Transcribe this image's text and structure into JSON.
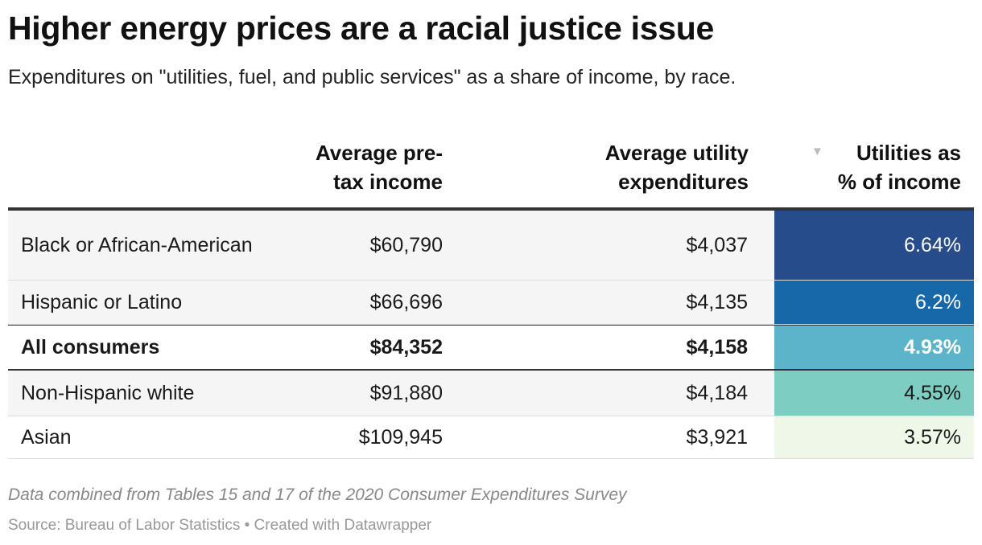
{
  "title": "Higher energy prices are a racial justice issue",
  "subtitle": "Expenditures on \"utilities, fuel, and public services\" as a share of income, by race.",
  "columns": [
    {
      "line1": "Average pre-",
      "line2": "tax income"
    },
    {
      "line1": "Average utility",
      "line2": "expenditures"
    },
    {
      "line1": "Utilities as",
      "line2": "% of income"
    }
  ],
  "sort_icon": "sort-descending-triangle-icon",
  "chart_data": {
    "type": "table",
    "columns": [
      "",
      "Average pre-tax income",
      "Average utility expenditures",
      "Utilities as % of income"
    ],
    "rows": [
      {
        "label": "Black or African-American",
        "income": "$60,790",
        "utility": "$4,037",
        "share": "6.64%",
        "share_value": 6.64,
        "color": "#264c8c",
        "text_color": "#ffffff",
        "bold": false
      },
      {
        "label": "Hispanic or Latino",
        "income": "$66,696",
        "utility": "$4,135",
        "share": "6.2%",
        "share_value": 6.2,
        "color": "#1768a9",
        "text_color": "#ffffff",
        "bold": false
      },
      {
        "label": "All consumers",
        "income": "$84,352",
        "utility": "$4,158",
        "share": "4.93%",
        "share_value": 4.93,
        "color": "#5bb4c9",
        "text_color": "#ffffff",
        "bold": true
      },
      {
        "label": "Non-Hispanic white",
        "income": "$91,880",
        "utility": "$4,184",
        "share": "4.55%",
        "share_value": 4.55,
        "color": "#7ecdc2",
        "text_color": "#1a1a1a",
        "bold": false
      },
      {
        "label": "Asian",
        "income": "$109,945",
        "utility": "$3,921",
        "share": "3.57%",
        "share_value": 3.57,
        "color": "#eef7e8",
        "text_color": "#1a1a1a",
        "bold": false
      }
    ]
  },
  "notes": "Data combined from Tables 15 and 17 of the 2020 Consumer Expenditures Survey",
  "source": "Source: Bureau of Labor Statistics • Created with Datawrapper"
}
